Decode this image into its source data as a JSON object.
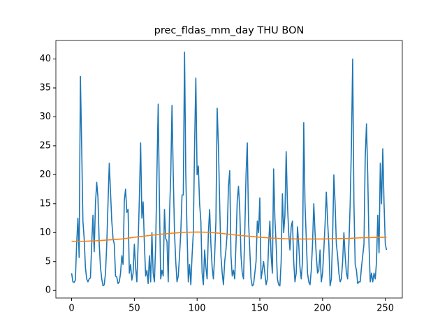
{
  "chart_data": {
    "type": "line",
    "title": "prec_fldas_mm_day THU BON",
    "xlim": [
      -12.55,
      263.55
    ],
    "ylim": [
      -1.3,
      43.2
    ],
    "xticks": [
      0,
      50,
      100,
      150,
      200,
      250
    ],
    "yticks": [
      0,
      5,
      10,
      15,
      20,
      25,
      30,
      35,
      40
    ],
    "series": [
      {
        "color": "#1f77b4",
        "x": [
          0,
          1,
          2,
          3,
          4,
          5,
          6,
          7,
          8,
          9,
          10,
          11,
          12,
          13,
          14,
          15,
          16,
          17,
          18,
          19,
          20,
          21,
          22,
          23,
          24,
          25,
          26,
          27,
          28,
          29,
          30,
          31,
          32,
          33,
          34,
          35,
          36,
          37,
          38,
          39,
          40,
          41,
          42,
          43,
          44,
          45,
          46,
          47,
          48,
          49,
          50,
          51,
          52,
          53,
          54,
          55,
          56,
          57,
          58,
          59,
          60,
          61,
          62,
          63,
          64,
          65,
          66,
          67,
          68,
          69,
          70,
          71,
          72,
          73,
          74,
          75,
          76,
          77,
          78,
          79,
          80,
          81,
          82,
          83,
          84,
          85,
          86,
          87,
          88,
          89,
          90,
          91,
          92,
          93,
          94,
          95,
          96,
          97,
          98,
          99,
          100,
          101,
          102,
          103,
          104,
          105,
          106,
          107,
          108,
          109,
          110,
          111,
          112,
          113,
          114,
          115,
          116,
          117,
          118,
          119,
          120,
          121,
          122,
          123,
          124,
          125,
          126,
          127,
          128,
          129,
          130,
          131,
          132,
          133,
          134,
          135,
          136,
          137,
          138,
          139,
          140,
          141,
          142,
          143,
          144,
          145,
          146,
          147,
          148,
          149,
          150,
          151,
          152,
          153,
          154,
          155,
          156,
          157,
          158,
          159,
          160,
          161,
          162,
          163,
          164,
          165,
          166,
          167,
          168,
          169,
          170,
          171,
          172,
          173,
          174,
          175,
          176,
          177,
          178,
          179,
          180,
          181,
          182,
          183,
          184,
          185,
          186,
          187,
          188,
          189,
          190,
          191,
          192,
          193,
          194,
          195,
          196,
          197,
          198,
          199,
          200,
          201,
          202,
          203,
          204,
          205,
          206,
          207,
          208,
          209,
          210,
          211,
          212,
          213,
          214,
          215,
          216,
          217,
          218,
          219,
          220,
          221,
          222,
          223,
          224,
          225,
          226,
          227,
          228,
          229,
          230,
          231,
          232,
          233,
          234,
          235,
          236,
          237,
          238,
          239,
          240,
          241,
          242,
          243,
          244,
          245,
          246,
          247,
          248,
          249,
          250,
          251
        ],
        "values": [
          3,
          1.5,
          1.4,
          1.8,
          8,
          12.5,
          5.7,
          37,
          25,
          12,
          9,
          4,
          2,
          1.5,
          2,
          2.2,
          8,
          13,
          6.7,
          15,
          18.7,
          16,
          8,
          4,
          2,
          0.8,
          1,
          3,
          8,
          15,
          22,
          17,
          12,
          9,
          8,
          2.5,
          2.3,
          1.2,
          1.5,
          3,
          6,
          4.5,
          15.6,
          17.5,
          13.5,
          14,
          3,
          4.5,
          1.8,
          3,
          8,
          4,
          1.5,
          8,
          16,
          25.5,
          12.5,
          15.3,
          8,
          2.5,
          3.5,
          1.2,
          6,
          1.5,
          10,
          3,
          1.5,
          8,
          20.5,
          32.2,
          15,
          2,
          3.5,
          2.5,
          14,
          9,
          8.5,
          1.5,
          13,
          20,
          32,
          20,
          10,
          5,
          1.5,
          2.5,
          6,
          10,
          16.5,
          16.5,
          41.2,
          20,
          10,
          1.5,
          4.5,
          1,
          6,
          10,
          25,
          36.7,
          20,
          21.5,
          15,
          12,
          3,
          1,
          7,
          4,
          2,
          10,
          14,
          8,
          4,
          2,
          6,
          12,
          31.5,
          25,
          15,
          6,
          3,
          1,
          5,
          7,
          10,
          18,
          20.7,
          6,
          2.5,
          3.5,
          2,
          8,
          15.5,
          18,
          14,
          6,
          3,
          2,
          10,
          20,
          25.5,
          12,
          7,
          2,
          0.8,
          1,
          3,
          5,
          12,
          10,
          16,
          2,
          3.5,
          5,
          3,
          1,
          2,
          8,
          12,
          6,
          3,
          21,
          12.5,
          8,
          2,
          1,
          0.8,
          5,
          16.7,
          10,
          13,
          24,
          15,
          10,
          7,
          11,
          12,
          5,
          1.5,
          3,
          11,
          8,
          4,
          2,
          5,
          29,
          15,
          9,
          3,
          1.5,
          1,
          3.5,
          8,
          15,
          10,
          6,
          3,
          3.5,
          7,
          1.5,
          3,
          7,
          11.5,
          17,
          12,
          8,
          0.8,
          2,
          9,
          20,
          15,
          8,
          6,
          3,
          1.5,
          2,
          5,
          10,
          6,
          3,
          2,
          8,
          15,
          25,
          40,
          15,
          4.5,
          3.5,
          1.2,
          1.5,
          1.5,
          4,
          6,
          8,
          23,
          28.8,
          20,
          8,
          1.5,
          3,
          1.5,
          3,
          2,
          5,
          13,
          6.5,
          22,
          15,
          24.5,
          15,
          8,
          7
        ]
      },
      {
        "color": "#ff7f0e",
        "x": [
          0,
          10,
          20,
          30,
          40,
          50,
          60,
          70,
          80,
          90,
          100,
          110,
          120,
          130,
          140,
          150,
          160,
          170,
          180,
          190,
          200,
          210,
          220,
          230,
          240,
          251
        ],
        "values": [
          8.5,
          8.5,
          8.6,
          8.75,
          8.9,
          9.2,
          9.45,
          9.7,
          9.9,
          10.05,
          10.1,
          10.05,
          9.85,
          9.6,
          9.4,
          9.2,
          9.05,
          8.95,
          8.9,
          8.9,
          8.9,
          8.95,
          9.0,
          9.1,
          9.15,
          9.2
        ]
      }
    ]
  }
}
